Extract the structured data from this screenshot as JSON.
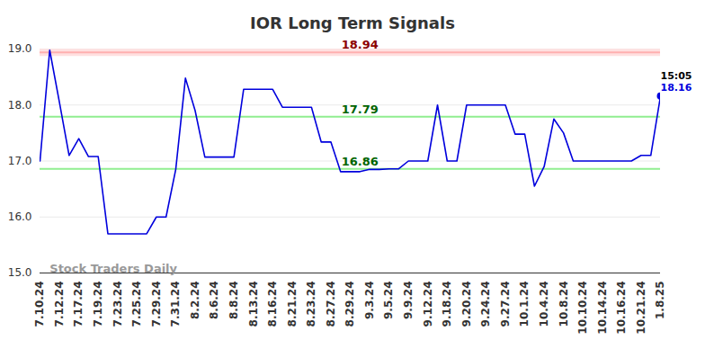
{
  "chart_data": {
    "type": "line",
    "title": "IOR Long Term Signals",
    "watermark": "Stock Traders Daily",
    "categories": [
      "7.10.24",
      null,
      "7.12.24",
      null,
      "7.17.24",
      null,
      "7.19.24",
      null,
      "7.23.24",
      null,
      "7.25.24",
      null,
      "7.29.24",
      null,
      "7.31.24",
      null,
      "8.2.24",
      null,
      "8.6.24",
      null,
      "8.8.24",
      null,
      "8.13.24",
      null,
      "8.16.24",
      null,
      "8.21.24",
      null,
      "8.23.24",
      null,
      "8.27.24",
      null,
      "8.29.24",
      null,
      "9.3.24",
      null,
      "9.5.24",
      null,
      "9.9.24",
      null,
      "9.12.24",
      null,
      "9.18.24",
      null,
      "9.20.24",
      null,
      "9.24.24",
      null,
      "9.27.24",
      null,
      "10.1.24",
      null,
      "10.4.24",
      null,
      "10.8.24",
      null,
      "10.10.24",
      null,
      "10.14.24",
      null,
      "10.16.24",
      null,
      "10.21.24",
      null,
      "1.8.25"
    ],
    "values": [
      17.0,
      18.98,
      18.05,
      17.1,
      17.4,
      17.08,
      17.08,
      15.7,
      15.7,
      15.7,
      15.7,
      15.7,
      16.0,
      16.0,
      16.85,
      18.48,
      17.9,
      17.07,
      17.07,
      17.07,
      17.07,
      18.28,
      18.28,
      18.28,
      18.28,
      17.96,
      17.96,
      17.96,
      17.96,
      17.34,
      17.34,
      16.81,
      16.81,
      16.81,
      16.85,
      16.85,
      16.86,
      16.86,
      17.0,
      17.0,
      17.0,
      18.0,
      17.0,
      17.0,
      18.0,
      18.0,
      18.0,
      18.0,
      18.0,
      17.48,
      17.48,
      16.55,
      16.9,
      17.75,
      17.5,
      17.0,
      17.0,
      17.0,
      17.0,
      17.0,
      17.0,
      17.0,
      17.1,
      17.1,
      18.16
    ],
    "color": "#0000dd",
    "ylim": [
      15,
      19
    ],
    "yticks": [
      15,
      16,
      17,
      18,
      19
    ],
    "grid": true,
    "annotations": [
      {
        "text": "18.94",
        "y": 18.94,
        "color": "#8b0000"
      },
      {
        "text": "17.79",
        "y": 17.79,
        "color": "#006400"
      },
      {
        "text": "16.86",
        "y": 16.86,
        "color": "#006400"
      }
    ],
    "end_label": {
      "text": "15:05",
      "value": 18.16
    }
  }
}
